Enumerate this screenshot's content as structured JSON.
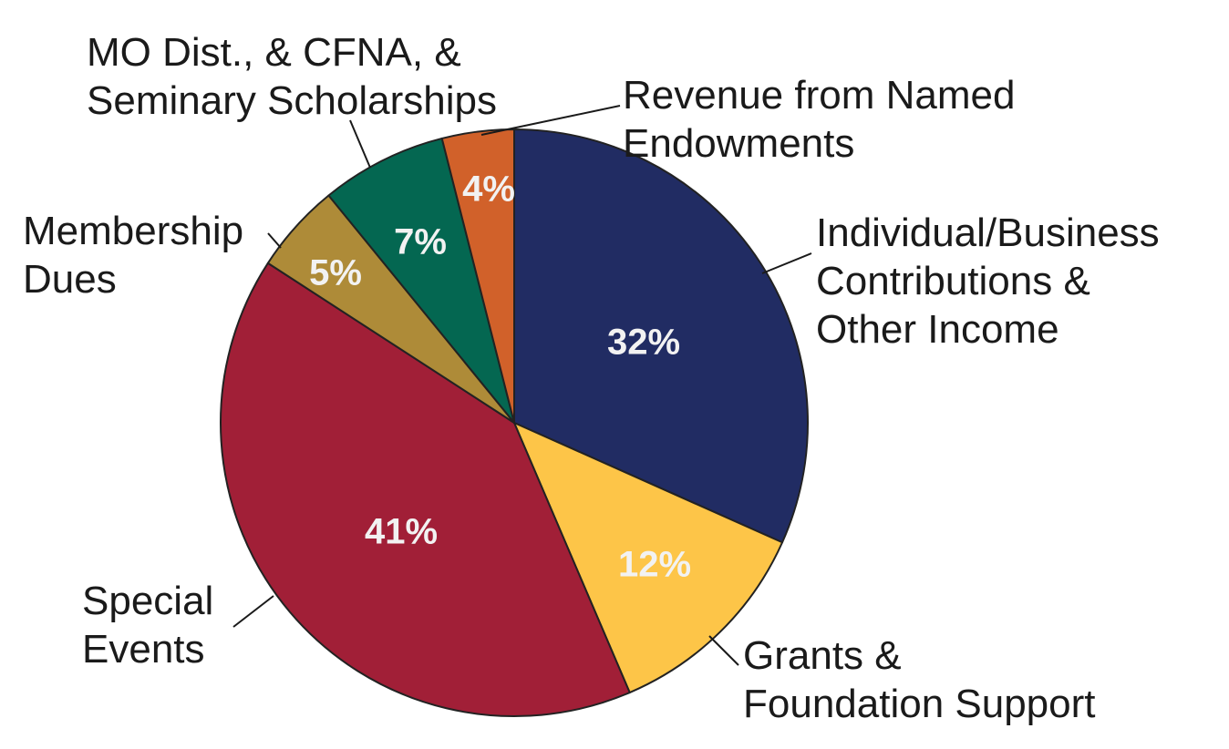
{
  "chart_data": {
    "type": "pie",
    "start": "12 o'clock",
    "direction": "clockwise",
    "slices": [
      {
        "key": "individual",
        "label_lines": [
          "Individual/Business",
          "Contributions &",
          "Other Income"
        ],
        "value": 32,
        "value_label": "32%",
        "color": "#212c63"
      },
      {
        "key": "grants",
        "label_lines": [
          "Grants &",
          "Foundation Support"
        ],
        "value": 12,
        "value_label": "12%",
        "color": "#fdc548"
      },
      {
        "key": "special",
        "label_lines": [
          "Special",
          "Events"
        ],
        "value": 41,
        "value_label": "41%",
        "color": "#a11f37"
      },
      {
        "key": "membership",
        "label_lines": [
          "Membership",
          "Dues"
        ],
        "value": 5,
        "value_label": "5%",
        "color": "#ae8b38"
      },
      {
        "key": "mo_dist",
        "label_lines": [
          "MO Dist., & CFNA, &",
          "Seminary Scholarships"
        ],
        "value": 7,
        "value_label": "7%",
        "color": "#046751"
      },
      {
        "key": "named_endow",
        "label_lines": [
          "Revenue from Named",
          "Endowments"
        ],
        "value": 4,
        "value_label": "4%",
        "color": "#d1612a"
      }
    ]
  }
}
